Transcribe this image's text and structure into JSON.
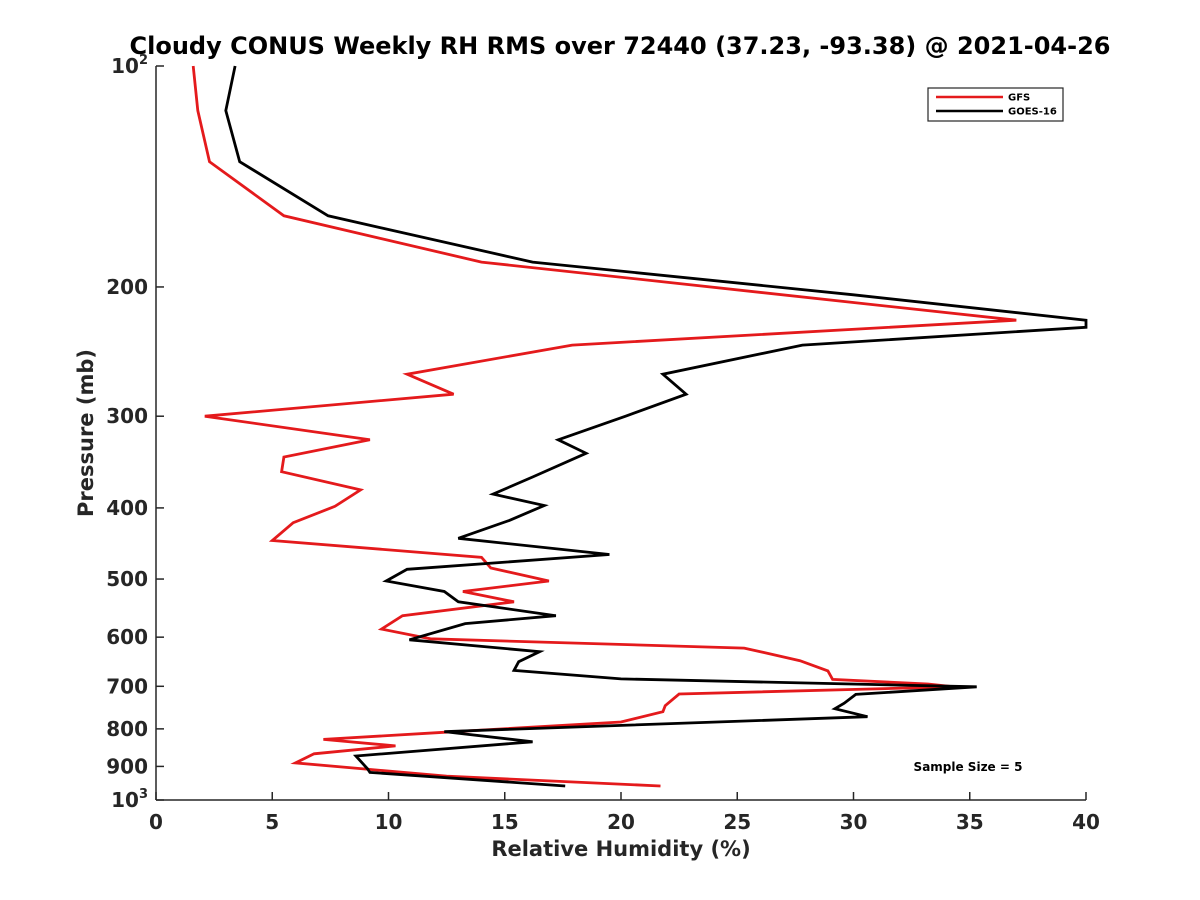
{
  "chart_data": {
    "type": "line",
    "title": "Cloudy CONUS Weekly RH RMS over 72440 (37.23, -93.38) @ 2021-04-26",
    "xlabel": "Relative Humidity (%)",
    "ylabel": "Pressure (mb)",
    "xlim": [
      0,
      40
    ],
    "ylim": [
      100,
      1000
    ],
    "y_scale": "log",
    "y_reversed": true,
    "grid": false,
    "x_ticks": [
      {
        "value": 0,
        "label": "0"
      },
      {
        "value": 5,
        "label": "5"
      },
      {
        "value": 10,
        "label": "10"
      },
      {
        "value": 15,
        "label": "15"
      },
      {
        "value": 20,
        "label": "20"
      },
      {
        "value": 25,
        "label": "25"
      },
      {
        "value": 30,
        "label": "30"
      },
      {
        "value": 35,
        "label": "35"
      },
      {
        "value": 40,
        "label": "40"
      }
    ],
    "y_ticks": [
      {
        "value": 100,
        "label": "10",
        "sup": "2"
      },
      {
        "value": 200,
        "label": "200"
      },
      {
        "value": 300,
        "label": "300"
      },
      {
        "value": 400,
        "label": "400"
      },
      {
        "value": 500,
        "label": "500"
      },
      {
        "value": 600,
        "label": "600"
      },
      {
        "value": 700,
        "label": "700"
      },
      {
        "value": 800,
        "label": "800"
      },
      {
        "value": 900,
        "label": "900"
      },
      {
        "value": 1000,
        "label": "10",
        "sup": "3"
      }
    ],
    "legend_position": "top-right",
    "annotation": "Sample Size = 5",
    "series": [
      {
        "name": "GFS",
        "color": "#e41a1c",
        "points": [
          [
            1.6,
            100
          ],
          [
            1.8,
            115
          ],
          [
            2.3,
            135
          ],
          [
            5.5,
            160
          ],
          [
            14,
            185
          ],
          [
            37,
            222
          ],
          [
            17.9,
            240
          ],
          [
            10.8,
            263
          ],
          [
            12.8,
            280
          ],
          [
            2.1,
            300
          ],
          [
            9.2,
            323
          ],
          [
            5.5,
            341
          ],
          [
            5.4,
            357
          ],
          [
            8.8,
            378
          ],
          [
            7.7,
            398
          ],
          [
            5.9,
            419
          ],
          [
            5.0,
            443
          ],
          [
            14.0,
            467
          ],
          [
            14.4,
            483
          ],
          [
            16.9,
            503
          ],
          [
            13.2,
            520
          ],
          [
            15.4,
            537
          ],
          [
            10.6,
            561
          ],
          [
            9.7,
            585
          ],
          [
            11.8,
            603
          ],
          [
            25.3,
            621
          ],
          [
            27.7,
            646
          ],
          [
            28.9,
            667
          ],
          [
            29.1,
            685
          ],
          [
            33.2,
            695
          ],
          [
            34.3,
            701
          ],
          [
            22.5,
            717
          ],
          [
            21.9,
            744
          ],
          [
            21.8,
            758
          ],
          [
            20.0,
            783
          ],
          [
            12.0,
            810
          ],
          [
            7.2,
            827
          ],
          [
            10.3,
            844
          ],
          [
            6.8,
            865
          ],
          [
            6.0,
            890
          ],
          [
            12.5,
            928
          ],
          [
            21.7,
            957
          ]
        ]
      },
      {
        "name": "GOES-16",
        "color": "#000000",
        "points": [
          [
            3.4,
            100
          ],
          [
            3.0,
            115
          ],
          [
            3.6,
            135
          ],
          [
            7.4,
            160
          ],
          [
            16.2,
            185
          ],
          [
            30.0,
            205
          ],
          [
            40,
            222
          ],
          [
            40,
            227
          ],
          [
            27.8,
            240
          ],
          [
            21.8,
            263
          ],
          [
            22.8,
            280
          ],
          [
            20.2,
            300
          ],
          [
            17.3,
            323
          ],
          [
            18.5,
            337
          ],
          [
            16.2,
            363
          ],
          [
            14.5,
            383
          ],
          [
            16.7,
            397
          ],
          [
            15.2,
            416
          ],
          [
            13.0,
            440
          ],
          [
            19.5,
            463
          ],
          [
            10.8,
            485
          ],
          [
            9.9,
            503
          ],
          [
            12.4,
            520
          ],
          [
            13.0,
            537
          ],
          [
            17.2,
            561
          ],
          [
            13.3,
            575
          ],
          [
            10.9,
            605
          ],
          [
            16.5,
            628
          ],
          [
            15.6,
            648
          ],
          [
            15.4,
            666
          ],
          [
            20.0,
            684
          ],
          [
            35.3,
            701
          ],
          [
            30.1,
            718
          ],
          [
            29.6,
            738
          ],
          [
            29.2,
            751
          ],
          [
            30.6,
            770
          ],
          [
            12.4,
            807
          ],
          [
            16.2,
            833
          ],
          [
            8.6,
            871
          ],
          [
            9.1,
            907
          ],
          [
            9.2,
            917
          ],
          [
            17.6,
            957
          ]
        ]
      }
    ]
  }
}
